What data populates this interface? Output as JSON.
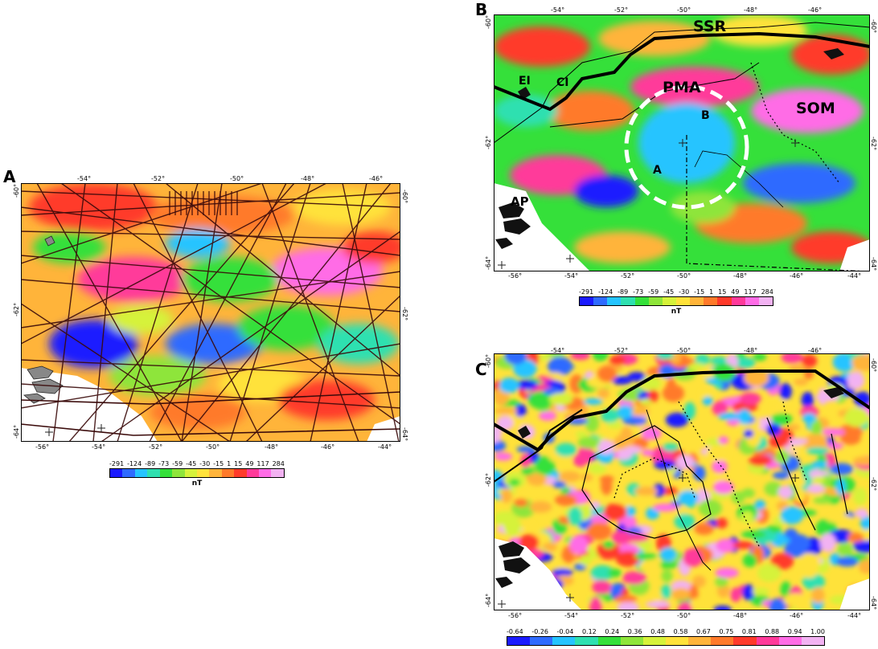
{
  "panels": {
    "a": {
      "letter": "A"
    },
    "b": {
      "letter": "B",
      "labels": {
        "ssr": "SSR",
        "pma": "PMA",
        "som": "SOM",
        "ei": "EI",
        "ci": "CI",
        "ap": "AP",
        "b": "B",
        "a": "A"
      }
    },
    "c": {
      "letter": "C"
    }
  },
  "axes": {
    "lon_top": [
      "-54°",
      "-52°",
      "-50°",
      "-48°",
      "-46°"
    ],
    "lon_bottom": [
      "-56°",
      "-54°",
      "-52°",
      "-50°",
      "-48°",
      "-46°",
      "-44°"
    ],
    "lat_left": [
      "-60°",
      "-62°",
      "-64°"
    ],
    "lat_right": [
      "-60°",
      "-62°",
      "-64°"
    ]
  },
  "legend_nt": {
    "ticks": [
      "-291",
      "-124",
      "-89",
      "-73",
      "-59",
      "-45",
      "-30",
      "-15",
      "1",
      "15",
      "49",
      "117",
      "284"
    ],
    "unit": "nT",
    "colors": [
      "#1a1aff",
      "#2f6bff",
      "#25c4ff",
      "#2fe0b0",
      "#35e03a",
      "#8ee53a",
      "#d6f23a",
      "#ffe23a",
      "#ffb43a",
      "#ff7a2a",
      "#ff3a2a",
      "#ff3a9a",
      "#ff6ce6",
      "#f2b2f2"
    ]
  },
  "legend_c": {
    "ticks": [
      "-0.64",
      "-0.26",
      "-0.04",
      "0.12",
      "0.24",
      "0.36",
      "0.48",
      "0.58",
      "0.67",
      "0.75",
      "0.81",
      "0.88",
      "0.94",
      "1.00"
    ],
    "colors": [
      "#1a1aff",
      "#2f6bff",
      "#25c4ff",
      "#2fe0b0",
      "#35e03a",
      "#8ee53a",
      "#d6f23a",
      "#ffe23a",
      "#ffb43a",
      "#ff7a2a",
      "#ff3a2a",
      "#ff3a9a",
      "#ff6ce6",
      "#f2b2f2"
    ]
  }
}
